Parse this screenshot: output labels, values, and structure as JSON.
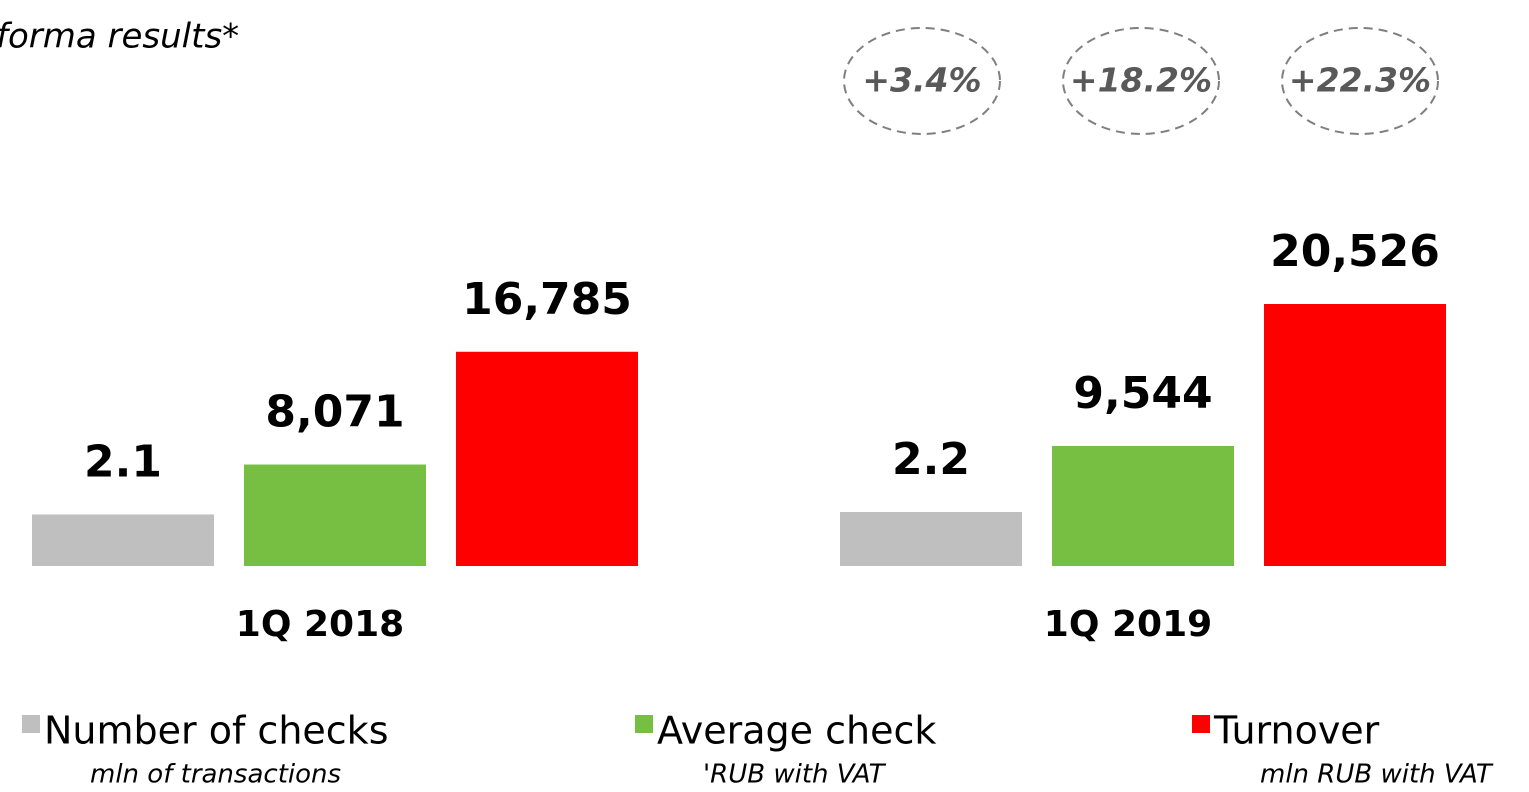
{
  "chart_data": {
    "type": "bar",
    "title": "forma results*",
    "categories": [
      "1Q 2018",
      "1Q 2019"
    ],
    "series": [
      {
        "name": "Number of checks",
        "unit": "mln of transactions",
        "color": "#bfbfbf",
        "values": [
          2.1,
          2.2
        ]
      },
      {
        "name": "Average check",
        "unit": "'RUB with VAT",
        "color": "#76bf42",
        "values": [
          8071,
          9544
        ],
        "value_labels": [
          "8,071",
          "9,544"
        ]
      },
      {
        "name": "Turnover",
        "unit": "mln RUB with VAT",
        "color": "#ff0000",
        "values": [
          16785,
          20526
        ],
        "value_labels": [
          "16,785",
          "20,526"
        ]
      }
    ],
    "annotations": [
      "+3.4%",
      "+18.2%",
      "+22.3%"
    ]
  }
}
